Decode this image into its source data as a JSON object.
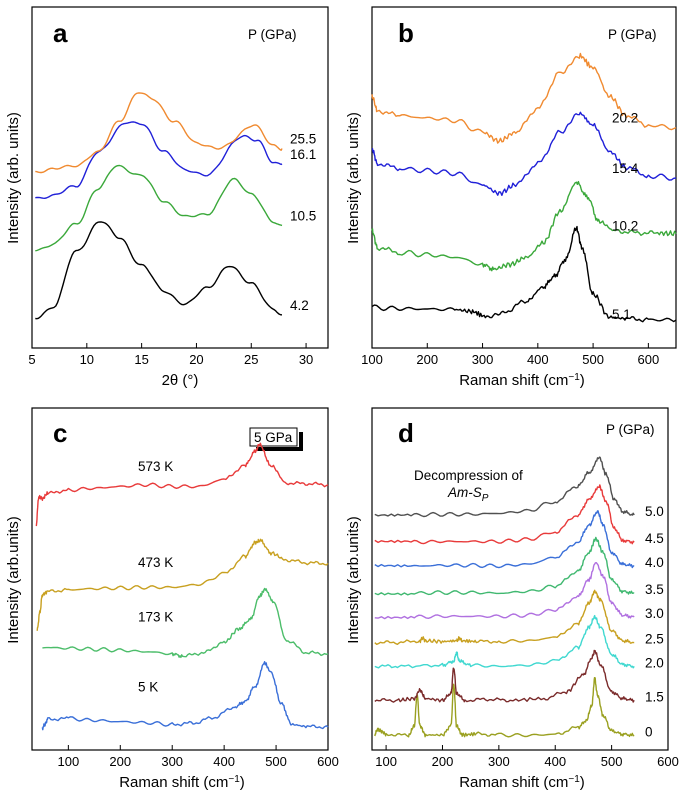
{
  "chart_data": [
    {
      "panel": "a",
      "type": "line",
      "xlabel": "2θ (°)",
      "ylabel": "Intensity (arb. units)",
      "xlim": [
        5,
        32
      ],
      "xticks": [
        "5",
        "10",
        "15",
        "20",
        "25",
        "30"
      ],
      "legend_title": "P (GPa)",
      "series": [
        {
          "name": "4.2",
          "color": "#000000",
          "x": [
            5.3,
            7,
            9,
            11.2,
            13,
            15,
            17,
            19,
            21,
            23,
            25,
            27,
            27.8
          ],
          "y": [
            0.05,
            0.4,
            1.95,
            2.82,
            2.35,
            1.55,
            0.85,
            0.43,
            0.95,
            1.52,
            1.08,
            0.28,
            0.15
          ]
        },
        {
          "name": "10.5",
          "color": "#3aa83a",
          "x": [
            5.3,
            7,
            9,
            11,
            12.8,
            15,
            17,
            19,
            21,
            23.5,
            25,
            27,
            27.8
          ],
          "y": [
            2.0,
            2.18,
            2.74,
            3.74,
            4.42,
            4.11,
            3.42,
            2.93,
            3.05,
            4.01,
            3.62,
            2.79,
            2.7
          ]
        },
        {
          "name": "16.1",
          "color": "#2020d8",
          "x": [
            5.3,
            7,
            9,
            11,
            13.6,
            15,
            17,
            19,
            21,
            24.3,
            25.5,
            27,
            27.8
          ],
          "y": [
            3.5,
            3.55,
            3.84,
            4.77,
            5.67,
            5.58,
            4.85,
            4.26,
            4.17,
            5.28,
            5.13,
            4.5,
            4.46
          ]
        },
        {
          "name": "25.5",
          "color": "#f08a30",
          "x": [
            5.3,
            7,
            9,
            11,
            13,
            14.7,
            16,
            18,
            20,
            22,
            25.2,
            27,
            27.8
          ],
          "y": [
            4.25,
            4.3,
            4.43,
            4.77,
            5.72,
            6.48,
            6.34,
            5.65,
            5.08,
            4.88,
            5.56,
            5.0,
            4.9
          ]
        }
      ]
    },
    {
      "panel": "b",
      "type": "line",
      "xlabel": "Raman shift (cm⁻¹)",
      "ylabel": "Intensity (arb. units)",
      "xlim": [
        100,
        650
      ],
      "xticks": [
        "100",
        "200",
        "300",
        "400",
        "500",
        "600"
      ],
      "legend_title": "P (GPa)",
      "series": [
        {
          "name": "5.1",
          "color": "#000000",
          "x": [
            100,
            150,
            200,
            250,
            280,
            305,
            340,
            380,
            410,
            430,
            450,
            470,
            480,
            500,
            530,
            560,
            600,
            650
          ],
          "y": [
            0.3,
            0.28,
            0.27,
            0.26,
            0.22,
            0.12,
            0.22,
            0.44,
            0.73,
            0.95,
            1.3,
            1.95,
            1.55,
            0.58,
            0.1,
            0.07,
            0.05,
            0.04
          ]
        },
        {
          "name": "10.2",
          "color": "#3aa83a",
          "x": [
            100,
            110,
            150,
            200,
            250,
            300,
            320,
            350,
            380,
            410,
            440,
            470,
            490,
            510,
            540,
            580,
            620,
            650
          ],
          "y": [
            1.9,
            1.55,
            1.45,
            1.4,
            1.35,
            1.2,
            1.1,
            1.2,
            1.35,
            1.65,
            2.3,
            2.9,
            2.6,
            2.1,
            1.9,
            1.86,
            1.85,
            1.84
          ]
        },
        {
          "name": "15.4",
          "color": "#2020d8",
          "x": [
            100,
            110,
            150,
            200,
            250,
            300,
            330,
            360,
            400,
            440,
            475,
            500,
            530,
            560,
            600,
            650
          ],
          "y": [
            3.6,
            3.3,
            3.2,
            3.15,
            3.1,
            2.85,
            2.68,
            2.86,
            3.3,
            3.95,
            4.35,
            4.1,
            3.55,
            3.22,
            3.05,
            3.0
          ]
        },
        {
          "name": "20.2",
          "color": "#f08a30",
          "x": [
            100,
            110,
            150,
            200,
            250,
            300,
            330,
            360,
            400,
            440,
            475,
            500,
            530,
            560,
            600,
            650
          ],
          "y": [
            4.7,
            4.4,
            4.3,
            4.25,
            4.2,
            3.95,
            3.77,
            3.95,
            4.45,
            5.2,
            5.55,
            5.3,
            4.7,
            4.3,
            4.1,
            4.05
          ]
        }
      ]
    },
    {
      "panel": "c",
      "type": "line",
      "xlabel": "Raman shift (cm⁻¹)",
      "ylabel": "Intensity (arb.units)",
      "xlim": [
        30,
        600
      ],
      "xticks": [
        "100",
        "200",
        "300",
        "400",
        "500",
        "600"
      ],
      "scale_label": "5 GPa",
      "series": [
        {
          "name": "5 K",
          "color": "#3a6fd8",
          "x": [
            50,
            55,
            60,
            100,
            150,
            200,
            250,
            300,
            340,
            380,
            420,
            440,
            460,
            478,
            490,
            510,
            530,
            560,
            600
          ],
          "y": [
            0,
            0.1,
            0.25,
            0.27,
            0.22,
            0.18,
            0.15,
            0.1,
            0.14,
            0.3,
            0.6,
            0.75,
            1.2,
            1.85,
            1.6,
            0.7,
            0.1,
            0.04,
            0.03
          ]
        },
        {
          "name": "173 K",
          "color": "#4cbd6a",
          "x": [
            50,
            100,
            150,
            200,
            250,
            300,
            320,
            360,
            400,
            430,
            450,
            470,
            478,
            495,
            520,
            560,
            600
          ],
          "y": [
            2.3,
            2.28,
            2.25,
            2.22,
            2.18,
            2.12,
            2.05,
            2.15,
            2.45,
            2.85,
            3.1,
            3.8,
            3.95,
            3.6,
            2.5,
            2.15,
            2.12
          ]
        },
        {
          "name": "473 K",
          "color": "#c8a020",
          "x": [
            40,
            45,
            50,
            60,
            100,
            150,
            200,
            250,
            300,
            350,
            400,
            440,
            460,
            470,
            490,
            520,
            560,
            600
          ],
          "y": [
            2.8,
            3.3,
            3.8,
            3.9,
            3.95,
            3.98,
            4.0,
            4.02,
            4.02,
            4.1,
            4.4,
            4.9,
            5.3,
            5.35,
            5.0,
            4.8,
            4.72,
            4.7
          ]
        },
        {
          "name": "573 K",
          "color": "#e83a3a",
          "x": [
            38,
            43,
            50,
            60,
            100,
            150,
            200,
            250,
            300,
            350,
            400,
            440,
            460,
            468,
            490,
            520,
            560,
            600
          ],
          "y": [
            5.8,
            6.6,
            6.55,
            6.7,
            6.8,
            6.85,
            6.9,
            6.95,
            6.9,
            6.9,
            7.1,
            7.5,
            7.9,
            8.1,
            7.5,
            7.0,
            6.98,
            6.95
          ]
        }
      ]
    },
    {
      "panel": "d",
      "type": "line",
      "xlabel": "Raman shift (cm⁻¹)",
      "ylabel": "Intensity (arb.units)",
      "xlim": [
        75,
        600
      ],
      "xticks": [
        "100",
        "200",
        "300",
        "400",
        "500",
        "600"
      ],
      "legend_title": "P (GPa)",
      "annotation_line1": "Decompression of",
      "annotation_line2": "Am-S",
      "annotation_sub": "P",
      "series": [
        {
          "name": "0",
          "color": "#9aa020",
          "x": [
            80,
            85,
            90,
            100,
            140,
            150,
            155,
            160,
            170,
            200,
            215,
            220,
            225,
            235,
            260,
            300,
            350,
            400,
            440,
            455,
            465,
            470,
            475,
            485,
            500,
            520,
            540
          ],
          "y": [
            0.05,
            0.2,
            0.15,
            0.05,
            0.02,
            0.3,
            1.2,
            0.3,
            0.03,
            0.03,
            0.3,
            1.5,
            0.3,
            0.03,
            0.06,
            0.03,
            0.02,
            0.05,
            0.25,
            0.45,
            0.9,
            1.7,
            1.2,
            0.6,
            0.15,
            0.05,
            0.02
          ]
        },
        {
          "name": "1.5",
          "color": "#7a2a2a",
          "x": [
            80,
            120,
            150,
            160,
            170,
            200,
            215,
            220,
            225,
            240,
            280,
            320,
            380,
            420,
            450,
            465,
            470,
            480,
            500,
            520,
            540
          ],
          "y": [
            1.05,
            1.05,
            1.1,
            1.35,
            1.1,
            1.05,
            1.25,
            2.0,
            1.25,
            1.05,
            1.08,
            1.05,
            1.1,
            1.3,
            1.8,
            2.3,
            2.5,
            2.1,
            1.3,
            1.1,
            1.05
          ]
        },
        {
          "name": "2.0",
          "color": "#40d8d0",
          "x": [
            80,
            120,
            200,
            220,
            225,
            230,
            250,
            300,
            350,
            400,
            440,
            460,
            470,
            480,
            500,
            520,
            540
          ],
          "y": [
            2.05,
            2.05,
            2.08,
            2.2,
            2.45,
            2.2,
            2.08,
            2.05,
            2.08,
            2.2,
            2.6,
            3.2,
            3.5,
            3.2,
            2.4,
            2.1,
            2.05
          ]
        },
        {
          "name": "2.5",
          "color": "#c8a020",
          "x": [
            80,
            120,
            160,
            165,
            170,
            200,
            225,
            230,
            235,
            260,
            300,
            350,
            400,
            440,
            460,
            470,
            480,
            500,
            520,
            540
          ],
          "y": [
            2.75,
            2.75,
            2.8,
            2.88,
            2.8,
            2.78,
            2.8,
            2.88,
            2.8,
            2.78,
            2.78,
            2.8,
            2.9,
            3.3,
            3.9,
            4.25,
            4.0,
            3.1,
            2.8,
            2.75
          ]
        },
        {
          "name": "3.0",
          "color": "#b070e0",
          "x": [
            80,
            150,
            200,
            250,
            300,
            350,
            400,
            440,
            460,
            472,
            485,
            500,
            520,
            540
          ],
          "y": [
            3.5,
            3.5,
            3.52,
            3.52,
            3.52,
            3.55,
            3.7,
            4.1,
            4.6,
            5.1,
            4.7,
            3.9,
            3.55,
            3.5
          ]
        },
        {
          "name": "3.5",
          "color": "#40b870",
          "x": [
            80,
            150,
            200,
            250,
            300,
            350,
            400,
            440,
            460,
            472,
            485,
            500,
            520,
            540
          ],
          "y": [
            4.2,
            4.2,
            4.22,
            4.22,
            4.2,
            4.25,
            4.4,
            4.85,
            5.4,
            5.8,
            5.4,
            4.6,
            4.25,
            4.2
          ]
        },
        {
          "name": "4.0",
          "color": "#3a6fd8",
          "x": [
            80,
            150,
            200,
            250,
            300,
            350,
            400,
            440,
            460,
            475,
            485,
            500,
            520,
            540
          ],
          "y": [
            5.0,
            5.0,
            5.02,
            5.02,
            5.0,
            5.05,
            5.25,
            5.7,
            6.2,
            6.6,
            6.2,
            5.4,
            5.05,
            5.0
          ]
        },
        {
          "name": "4.5",
          "color": "#e83a3a",
          "x": [
            80,
            150,
            200,
            250,
            300,
            350,
            400,
            440,
            460,
            478,
            490,
            505,
            520,
            540
          ],
          "y": [
            5.7,
            5.7,
            5.72,
            5.72,
            5.72,
            5.78,
            6.0,
            6.5,
            6.95,
            7.35,
            6.9,
            6.1,
            5.75,
            5.7
          ]
        },
        {
          "name": "5.0",
          "color": "#505050",
          "x": [
            80,
            150,
            200,
            250,
            300,
            350,
            400,
            440,
            460,
            478,
            490,
            505,
            520,
            540
          ],
          "y": [
            6.5,
            6.5,
            6.52,
            6.52,
            6.55,
            6.62,
            6.9,
            7.35,
            7.75,
            8.2,
            7.7,
            6.95,
            6.6,
            6.5
          ]
        }
      ]
    }
  ]
}
